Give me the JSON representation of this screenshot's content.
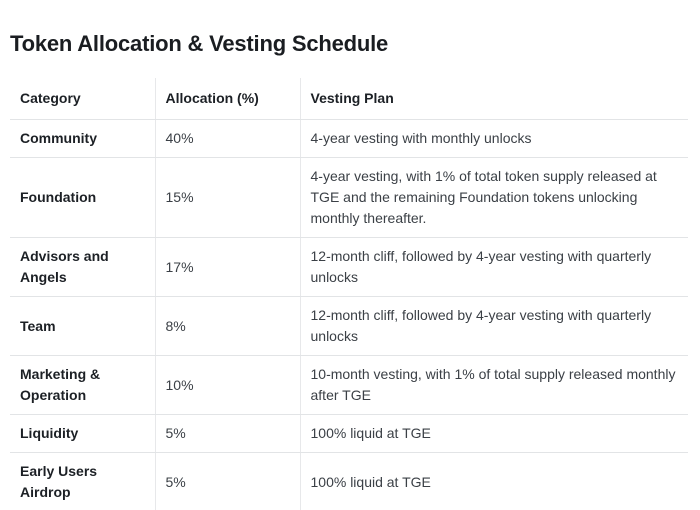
{
  "page": {
    "title": "Token Allocation & Vesting Schedule"
  },
  "table": {
    "columns": [
      "Category",
      "Allocation (%)",
      "Vesting Plan"
    ],
    "rows": [
      {
        "category": "Community",
        "allocation": "40%",
        "vesting": "4-year vesting with monthly unlocks"
      },
      {
        "category": "Foundation",
        "allocation": "15%",
        "vesting": "4-year vesting, with 1% of total token supply released at TGE and the remaining Foundation tokens unlocking monthly thereafter."
      },
      {
        "category": "Advisors and Angels",
        "allocation": "17%",
        "vesting": "12-month cliff, followed by 4-year vesting with quarterly unlocks"
      },
      {
        "category": "Team",
        "allocation": "8%",
        "vesting": "12-month cliff, followed by 4-year vesting with quarterly unlocks"
      },
      {
        "category": "Marketing & Operation",
        "allocation": "10%",
        "vesting": "10-month vesting, with 1% of total supply released monthly after TGE"
      },
      {
        "category": "Liquidity",
        "allocation": "5%",
        "vesting": "100% liquid at TGE"
      },
      {
        "category": "Early Users Airdrop",
        "allocation": "5%",
        "vesting": "100% liquid at TGE"
      }
    ]
  },
  "colors": {
    "title_text": "#1a1d21",
    "bold_text": "#1c2025",
    "body_text": "#3b4046",
    "row_border": "#e2e4e6",
    "column_border": "#e7e8ea",
    "background": "#ffffff"
  }
}
